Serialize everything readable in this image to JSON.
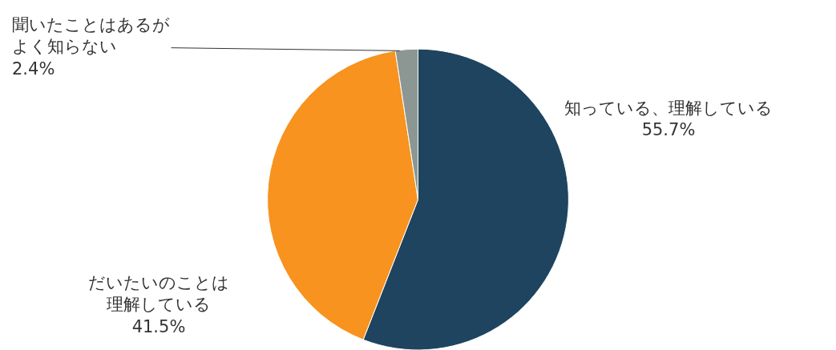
{
  "chart_data": {
    "type": "pie",
    "categories": [
      "知っている、理解している",
      "だいたいのことは理解している",
      "聞いたことはあるがよく知らない"
    ],
    "values": [
      55.7,
      41.5,
      2.4
    ],
    "value_labels": [
      "55.7%",
      "41.5%",
      "2.4%"
    ],
    "colors": [
      "#1e4460",
      "#f7931e",
      "#8c9693"
    ],
    "legend": false
  }
}
